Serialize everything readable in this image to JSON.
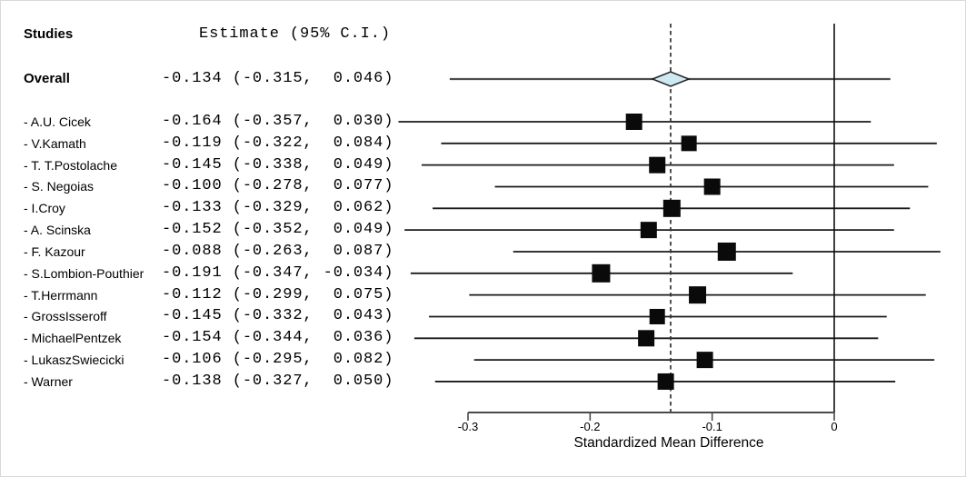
{
  "table": {
    "studies_header": "Studies",
    "estimate_header": "Estimate (95% C.I.)"
  },
  "chart_data": {
    "type": "forest",
    "xlabel": "Standardized Mean Difference",
    "x_ticks": [
      -0.3,
      -0.2,
      -0.1,
      0
    ],
    "x_tick_labels": [
      "-0.3",
      "-0.2",
      "-0.1",
      "0"
    ],
    "xlim": [
      -0.41,
      0.11
    ],
    "reference_line": 0,
    "summary_dashed_line": -0.134,
    "overall": {
      "label": "Overall",
      "estimate": -0.134,
      "ci_low": -0.315,
      "ci_high": 0.046,
      "estimate_text": "-0.134 (-0.315,  0.046)"
    },
    "studies": [
      {
        "label": "- A.U. Cicek",
        "estimate": -0.164,
        "ci_low": -0.357,
        "ci_high": 0.03,
        "estimate_text": "-0.164 (-0.357,  0.030)",
        "size": 18
      },
      {
        "label": "- V.Kamath",
        "estimate": -0.119,
        "ci_low": -0.322,
        "ci_high": 0.084,
        "estimate_text": "-0.119 (-0.322,  0.084)",
        "size": 17
      },
      {
        "label": "- T. T.Postolache",
        "estimate": -0.145,
        "ci_low": -0.338,
        "ci_high": 0.049,
        "estimate_text": "-0.145 (-0.338,  0.049)",
        "size": 18
      },
      {
        "label": "- S. Negoias",
        "estimate": -0.1,
        "ci_low": -0.278,
        "ci_high": 0.077,
        "estimate_text": "-0.100 (-0.278,  0.077)",
        "size": 18
      },
      {
        "label": "- I.Croy",
        "estimate": -0.133,
        "ci_low": -0.329,
        "ci_high": 0.062,
        "estimate_text": "-0.133 (-0.329,  0.062)",
        "size": 19
      },
      {
        "label": "- A. Scinska",
        "estimate": -0.152,
        "ci_low": -0.352,
        "ci_high": 0.049,
        "estimate_text": "-0.152 (-0.352,  0.049)",
        "size": 18
      },
      {
        "label": "- F. Kazour",
        "estimate": -0.088,
        "ci_low": -0.263,
        "ci_high": 0.087,
        "estimate_text": "-0.088 (-0.263,  0.087)",
        "size": 20
      },
      {
        "label": "- S.Lombion-Pouthier",
        "estimate": -0.191,
        "ci_low": -0.347,
        "ci_high": -0.034,
        "estimate_text": "-0.191 (-0.347, -0.034)",
        "size": 20
      },
      {
        "label": "- T.Herrmann",
        "estimate": -0.112,
        "ci_low": -0.299,
        "ci_high": 0.075,
        "estimate_text": "-0.112 (-0.299,  0.075)",
        "size": 19
      },
      {
        "label": "- GrossIsseroff",
        "estimate": -0.145,
        "ci_low": -0.332,
        "ci_high": 0.043,
        "estimate_text": "-0.145 (-0.332,  0.043)",
        "size": 17
      },
      {
        "label": "- MichaelPentzek",
        "estimate": -0.154,
        "ci_low": -0.344,
        "ci_high": 0.036,
        "estimate_text": "-0.154 (-0.344,  0.036)",
        "size": 18
      },
      {
        "label": "- LukaszSwiecicki",
        "estimate": -0.106,
        "ci_low": -0.295,
        "ci_high": 0.082,
        "estimate_text": "-0.106 (-0.295,  0.082)",
        "size": 18
      },
      {
        "label": "- Warner",
        "estimate": -0.138,
        "ci_low": -0.327,
        "ci_high": 0.05,
        "estimate_text": "-0.138 (-0.327,  0.050)",
        "size": 18
      }
    ]
  },
  "colors": {
    "ci_line": "#1a1a1a",
    "square": "#0a0a0a",
    "overall_line": "#4d4d4d",
    "axis": "#4a4a4a",
    "dashed_line": "#333333",
    "zero_line": "#111111",
    "diamond_fill": "#cfe9f4",
    "diamond_stroke": "#222222",
    "text": "#000000"
  }
}
